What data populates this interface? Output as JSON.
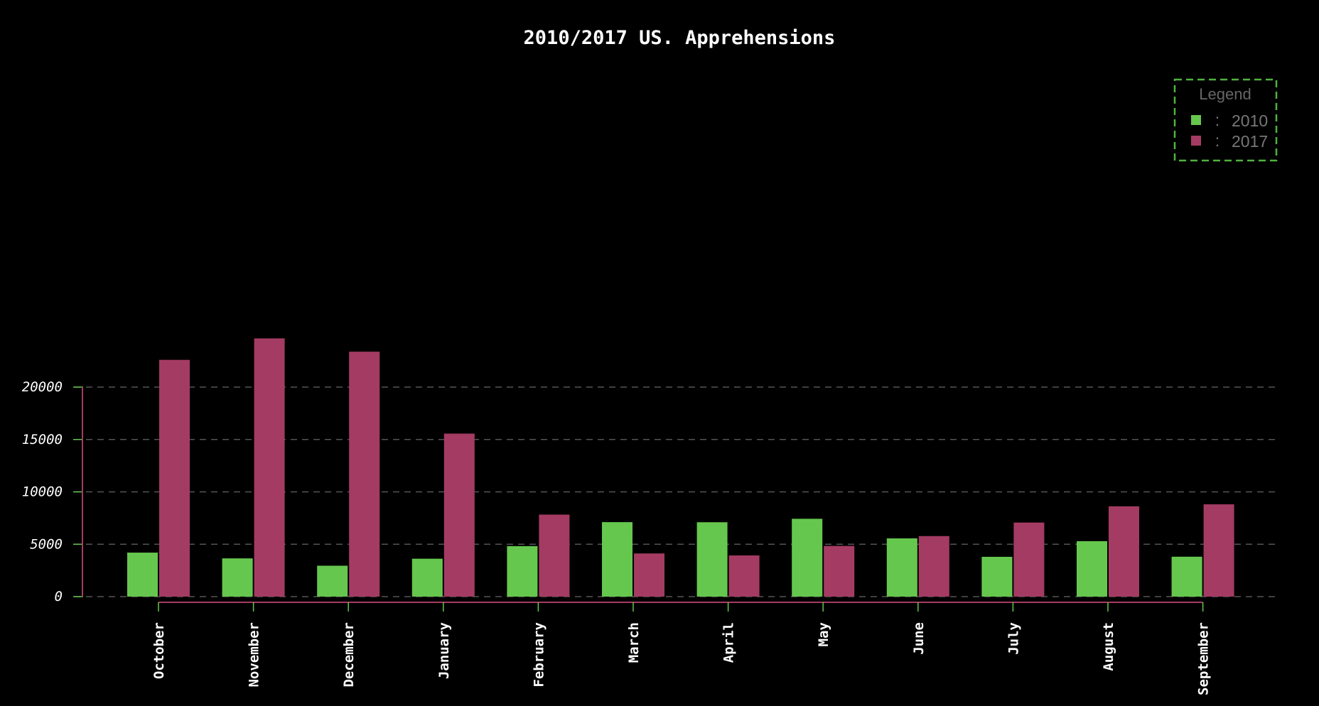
{
  "chart_data": {
    "type": "bar",
    "title": "2010/2017 US. Apprehensions",
    "xlabel": "",
    "ylabel": "",
    "categories": [
      "October",
      "November",
      "December",
      "January",
      "February",
      "March",
      "April",
      "May",
      "June",
      "July",
      "August",
      "September"
    ],
    "series": [
      {
        "name": "2010",
        "color": "#66c74e",
        "values": [
          4200,
          3650,
          2950,
          3620,
          4820,
          7110,
          7100,
          7430,
          5560,
          3800,
          5290,
          3810
        ]
      },
      {
        "name": "2017",
        "color": "#a43b63",
        "values": [
          22600,
          24650,
          23380,
          15560,
          7830,
          4120,
          3930,
          4840,
          5780,
          7070,
          8620,
          8810
        ]
      }
    ],
    "ylim": [
      0,
      25000
    ],
    "yticks": [
      "0",
      "5000",
      "10000",
      "15000",
      "20000"
    ],
    "grid": "horizontal-dashed",
    "legend": {
      "title": "Legend",
      "position": "top-right",
      "separator": ":"
    },
    "colors": {
      "background": "#000000",
      "grid": "#555555",
      "axis": "#a43b63",
      "tick": "#66c74e",
      "legend_border": "#4fb33e"
    }
  }
}
